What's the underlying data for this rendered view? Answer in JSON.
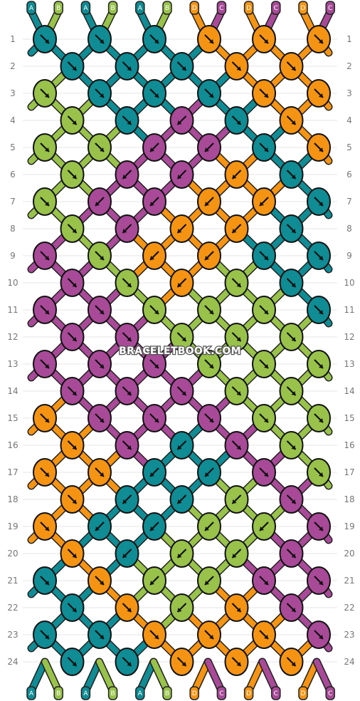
{
  "watermark": "BRACELETBOOK.COM",
  "colors": {
    "A": "#0f8c94",
    "B": "#98c24a",
    "C": "#a84a98",
    "D": "#f59413"
  },
  "string_letters_top": [
    "A",
    "B",
    "A",
    "B",
    "A",
    "B",
    "D",
    "C",
    "D",
    "C",
    "D",
    "C"
  ],
  "string_letters_bottom": [
    "A",
    "B",
    "A",
    "B",
    "A",
    "B",
    "D",
    "C",
    "D",
    "C",
    "D",
    "C"
  ],
  "row_labels": [
    "1",
    "2",
    "3",
    "4",
    "5",
    "6",
    "7",
    "8",
    "9",
    "10",
    "11",
    "12",
    "13",
    "14",
    "15",
    "16",
    "17",
    "18",
    "19",
    "20",
    "21",
    "22",
    "23",
    "24"
  ],
  "knot_rows": [
    [
      "A:↘",
      "A:↘",
      "A:↘",
      "D:↘",
      "D:↘",
      "D:↘"
    ],
    [
      "A:↘",
      "A:↘",
      "A:↘",
      "D:↘",
      "D:↘"
    ],
    [
      "B:↘",
      "A:↘",
      "A:↘",
      "A:↘",
      "D:↘",
      "D:↘"
    ],
    [
      "B:↘",
      "A:↘",
      "C:↙",
      "A:↘",
      "D:↘"
    ],
    [
      "B:↘",
      "B:↘",
      "C:↙",
      "C:↙",
      "A:↘",
      "D:↘"
    ],
    [
      "B:↘",
      "C:↙",
      "C:↙",
      "D:↙",
      "A:↘"
    ],
    [
      "B:↘",
      "C:↙",
      "C:↙",
      "D:↙",
      "D:↙",
      "A:↘"
    ],
    [
      "B:↘",
      "C:↙",
      "D:↙",
      "D:↙",
      "A:↘"
    ],
    [
      "C:↘",
      "B:↘",
      "D:↙",
      "D:↙",
      "A:↘",
      "A:↘"
    ],
    [
      "C:↘",
      "B:↘",
      "D:↙",
      "B:↘",
      "A:↘"
    ],
    [
      "C:↘",
      "C:↘",
      "B:↘",
      "B:↘",
      "B:↘",
      "A:↘"
    ],
    [
      "C:↘",
      "C:↘",
      "B:↘",
      "B:↘",
      "B:↘"
    ],
    [
      "C:↘",
      "C:↘",
      "C:↘",
      "B:↘",
      "B:↘",
      "B:↘"
    ],
    [
      "C:↘",
      "C:↘",
      "C:↘",
      "B:↘",
      "B:↘"
    ],
    [
      "D:↘",
      "C:↘",
      "C:↘",
      "C:↘",
      "B:↘",
      "B:↘"
    ],
    [
      "D:↘",
      "C:↘",
      "A:↙",
      "C:↘",
      "B:↘"
    ],
    [
      "D:↘",
      "D:↘",
      "A:↙",
      "A:↙",
      "C:↘",
      "B:↘"
    ],
    [
      "D:↘",
      "A:↙",
      "A:↙",
      "B:↙",
      "C:↘"
    ],
    [
      "D:↘",
      "A:↙",
      "A:↙",
      "B:↙",
      "B:↙",
      "C:↘"
    ],
    [
      "D:↘",
      "A:↙",
      "B:↙",
      "B:↙",
      "C:↘"
    ],
    [
      "A:↘",
      "D:↘",
      "B:↙",
      "B:↙",
      "C:↘",
      "C:↘"
    ],
    [
      "A:↘",
      "D:↘",
      "B:↙",
      "D:↘",
      "C:↘"
    ],
    [
      "A:↘",
      "A:↘",
      "D:↘",
      "D:↘",
      "D:↘",
      "C:↘"
    ],
    [
      "A:↘",
      "A:↘",
      "D:↘",
      "D:↘",
      "D:↘"
    ]
  ]
}
